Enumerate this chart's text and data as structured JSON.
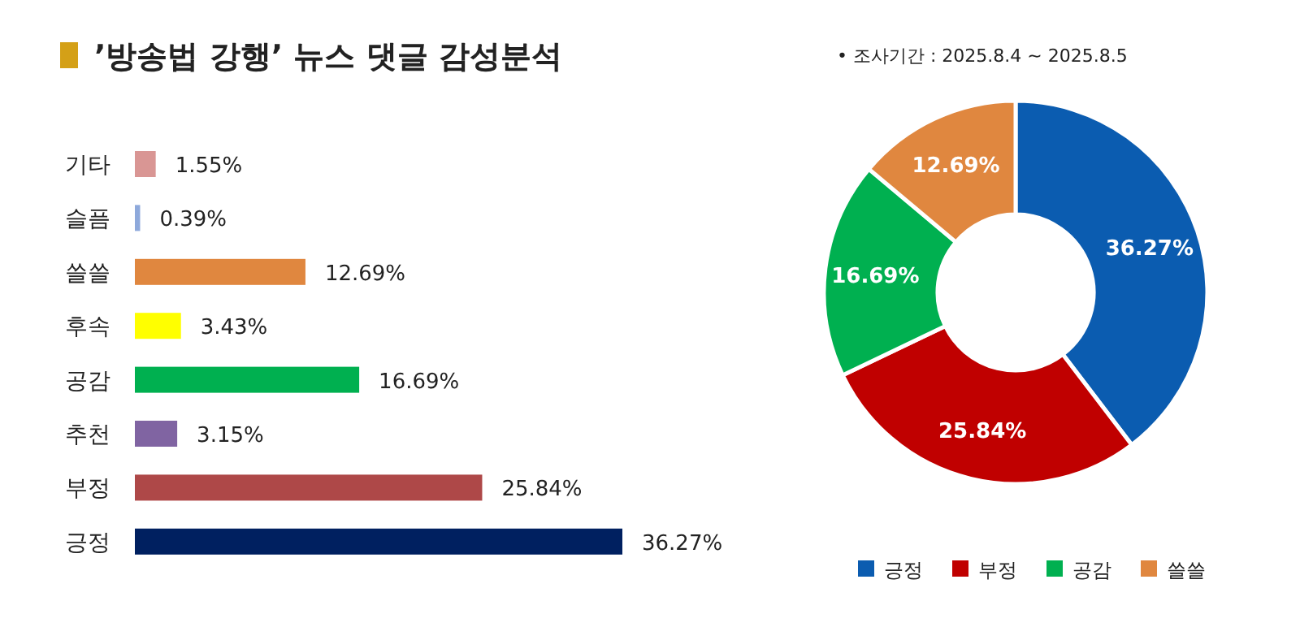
{
  "chart_data": [
    {
      "type": "bar",
      "orientation": "horizontal",
      "title": "’방송법 강행’ 뉴스 댓글 감성분석",
      "categories": [
        "기타",
        "슬픔",
        "쓸쓸",
        "후속",
        "공감",
        "추천",
        "부정",
        "긍정"
      ],
      "values": [
        1.55,
        0.39,
        12.69,
        3.43,
        16.69,
        3.15,
        25.84,
        36.27
      ],
      "colors": [
        "#d99694",
        "#8ea9db",
        "#e0873f",
        "#ffff00",
        "#00b050",
        "#8064a2",
        "#ae4848",
        "#002060"
      ],
      "value_labels": [
        "1.55%",
        "0.39%",
        "12.69%",
        "3.43%",
        "16.69%",
        "3.15%",
        "25.84%",
        "36.27%"
      ]
    },
    {
      "type": "donut",
      "annotations": [
        "•   조사기간 : 2025.8.4 ~ 2025.8.5"
      ],
      "categories": [
        "긍정",
        "부정",
        "공감",
        "쓸쓸"
      ],
      "values": [
        36.27,
        25.84,
        16.69,
        12.69
      ],
      "colors": [
        "#0b5cb0",
        "#c00000",
        "#00b050",
        "#e0873f"
      ],
      "value_labels": [
        "36.27%",
        "25.84%",
        "16.69%",
        "12.69%"
      ],
      "legend": "bottom"
    }
  ]
}
